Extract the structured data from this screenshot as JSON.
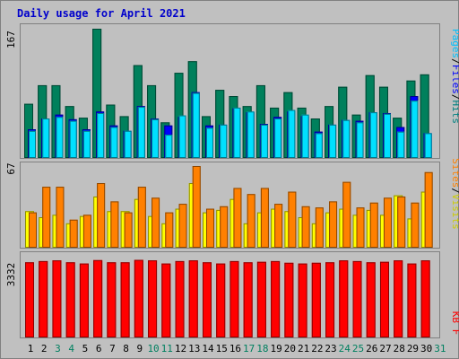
{
  "chart_data": [
    {
      "type": "bar",
      "title": "Daily usage for April 2021",
      "ymax_label": "167",
      "right_labels": [
        "Pages",
        "/",
        "Files",
        "/",
        "Hits"
      ],
      "categories": [
        "1",
        "2",
        "3",
        "4",
        "5",
        "6",
        "7",
        "8",
        "9",
        "10",
        "11",
        "12",
        "13",
        "14",
        "15",
        "16",
        "17",
        "18",
        "19",
        "20",
        "21",
        "22",
        "23",
        "24",
        "25",
        "26",
        "27",
        "28",
        "29",
        "30",
        "31"
      ],
      "weekend_days": [
        "3",
        "4",
        "10",
        "11",
        "17",
        "18",
        "24",
        "25",
        "31"
      ],
      "ylim": [
        0,
        167
      ],
      "series": [
        {
          "name": "Hits",
          "color": "#00805c",
          "values": [
            70,
            94,
            94,
            67,
            52,
            167,
            69,
            54,
            120,
            94,
            46,
            110,
            125,
            54,
            88,
            80,
            67,
            94,
            65,
            85,
            65,
            51,
            67,
            92,
            56,
            107,
            92,
            52,
            100,
            108,
            0
          ]
        },
        {
          "name": "Files",
          "color": "#0000ff",
          "values": [
            37,
            51,
            56,
            50,
            37,
            60,
            42,
            35,
            67,
            51,
            42,
            53,
            85,
            42,
            43,
            64,
            59,
            44,
            53,
            60,
            54,
            34,
            43,
            49,
            48,
            59,
            58,
            40,
            80,
            32,
            0
          ]
        },
        {
          "name": "Pages",
          "color": "#00e0ff",
          "values": [
            35,
            51,
            53,
            48,
            35,
            58,
            40,
            35,
            66,
            50,
            30,
            55,
            84,
            39,
            43,
            65,
            60,
            43,
            51,
            62,
            56,
            32,
            43,
            49,
            46,
            59,
            57,
            34,
            74,
            32,
            0
          ]
        }
      ]
    },
    {
      "type": "bar",
      "ymax_label": "67",
      "right_labels": [
        "Sites",
        "/",
        "Visits"
      ],
      "categories": [
        "1",
        "2",
        "3",
        "4",
        "5",
        "6",
        "7",
        "8",
        "9",
        "10",
        "11",
        "12",
        "13",
        "14",
        "15",
        "16",
        "17",
        "18",
        "19",
        "20",
        "21",
        "22",
        "23",
        "24",
        "25",
        "26",
        "27",
        "28",
        "29",
        "30",
        "31"
      ],
      "ylim": [
        0,
        67
      ],
      "series": [
        {
          "name": "Visits",
          "color": "#ffff00",
          "values": [
            30,
            25,
            27,
            20,
            26,
            42,
            30,
            30,
            40,
            26,
            20,
            32,
            53,
            29,
            31,
            40,
            20,
            29,
            32,
            30,
            25,
            20,
            29,
            32,
            27,
            31,
            27,
            43,
            24,
            46,
            0
          ]
        },
        {
          "name": "Sites",
          "color": "#ff8000",
          "values": [
            29,
            50,
            50,
            23,
            27,
            53,
            38,
            29,
            50,
            41,
            29,
            36,
            67,
            32,
            34,
            49,
            44,
            49,
            36,
            46,
            34,
            33,
            38,
            54,
            33,
            37,
            41,
            42,
            37,
            62,
            0
          ]
        }
      ]
    },
    {
      "type": "bar",
      "ymax_label": "3332",
      "right_labels": [
        "KB",
        "F"
      ],
      "categories": [
        "1",
        "2",
        "3",
        "4",
        "5",
        "6",
        "7",
        "8",
        "9",
        "10",
        "11",
        "12",
        "13",
        "14",
        "15",
        "16",
        "17",
        "18",
        "19",
        "20",
        "21",
        "22",
        "23",
        "24",
        "25",
        "26",
        "27",
        "28",
        "29",
        "30",
        "31"
      ],
      "ylim": [
        0,
        3332
      ],
      "series": [
        {
          "name": "KB F",
          "color": "#ff0000",
          "values": [
            3100,
            3150,
            3180,
            3100,
            3050,
            3190,
            3100,
            3100,
            3200,
            3180,
            3050,
            3150,
            3180,
            3100,
            3050,
            3150,
            3100,
            3120,
            3150,
            3080,
            3050,
            3080,
            3100,
            3180,
            3150,
            3100,
            3120,
            3180,
            3050,
            3180,
            0
          ]
        }
      ]
    }
  ]
}
